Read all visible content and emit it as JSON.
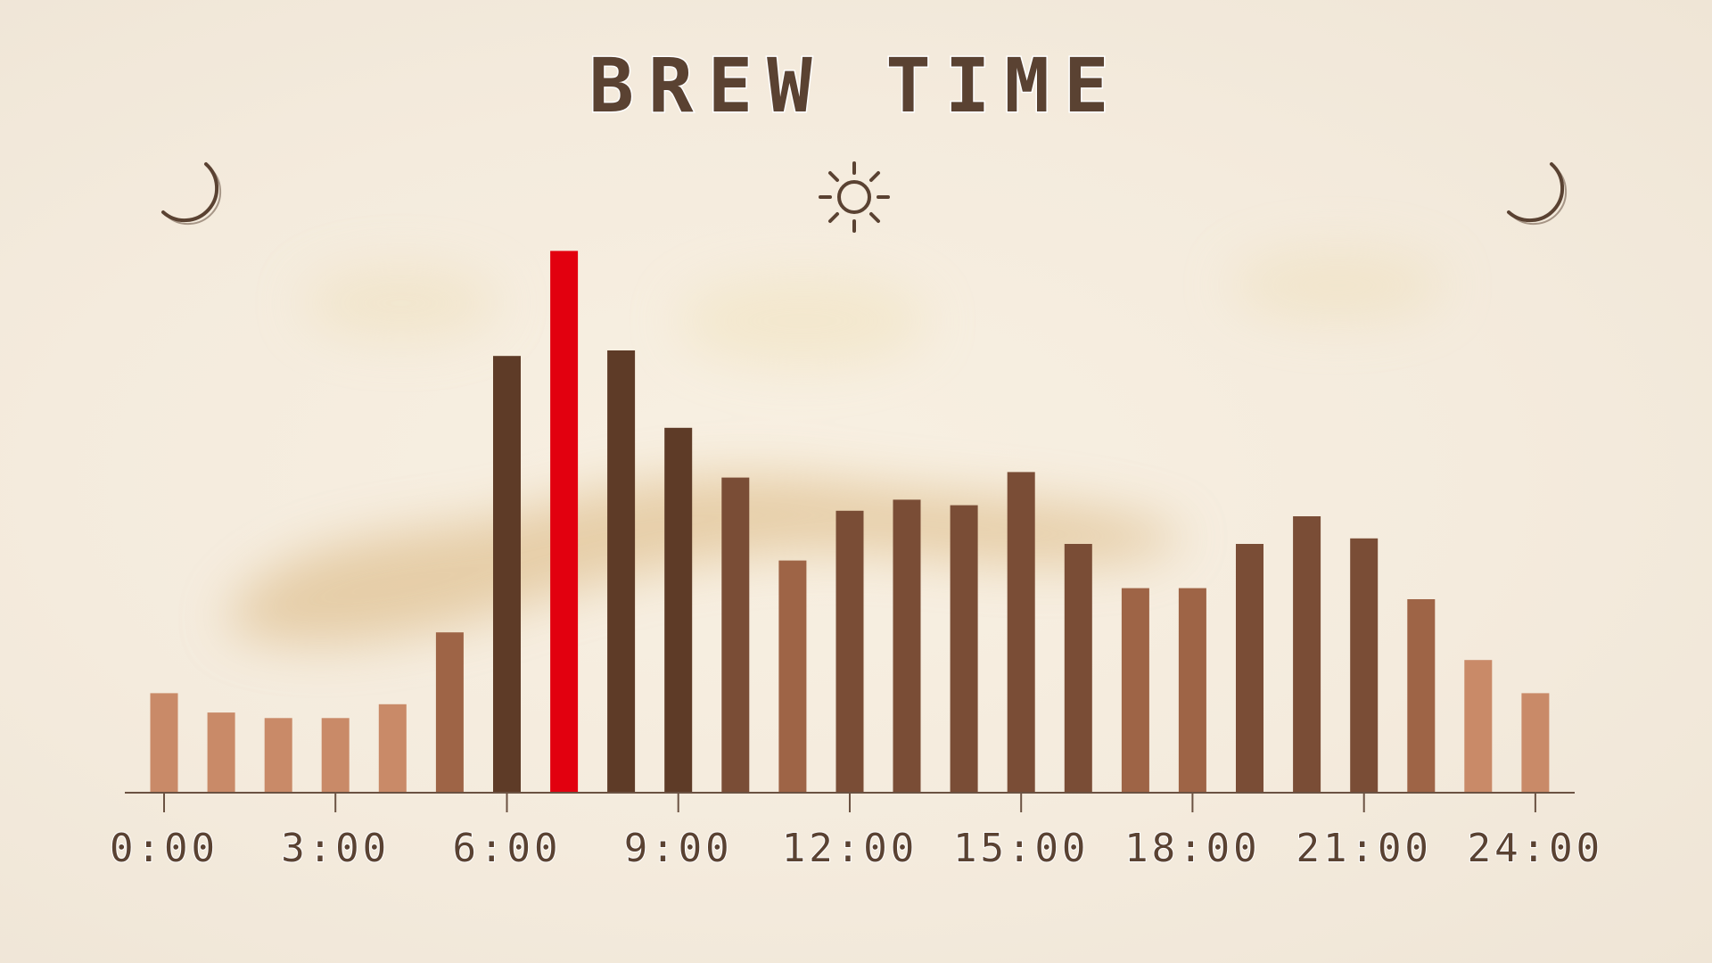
{
  "chart_data": {
    "type": "bar",
    "title": "BREW TIME",
    "xlabel": "",
    "ylabel": "",
    "categories": [
      "0:00",
      "1:00",
      "2:00",
      "3:00",
      "4:00",
      "5:00",
      "6:00",
      "7:00",
      "8:00",
      "9:00",
      "10:00",
      "11:00",
      "12:00",
      "13:00",
      "14:00",
      "15:00",
      "16:00",
      "17:00",
      "18:00",
      "19:00",
      "20:00",
      "21:00",
      "22:00",
      "23:00",
      "24:00"
    ],
    "values": [
      18,
      14.5,
      13.5,
      13.5,
      16,
      29,
      79,
      98,
      80,
      66,
      57,
      42,
      51,
      53,
      52,
      58,
      45,
      37,
      37,
      45,
      50,
      46,
      35,
      24,
      18
    ],
    "highlight_index": 7,
    "x_tick_labels": [
      "0:00",
      "3:00",
      "6:00",
      "9:00",
      "12:00",
      "15:00",
      "18:00",
      "21:00",
      "24:00"
    ],
    "x_tick_hours": [
      0,
      3,
      6,
      9,
      12,
      15,
      18,
      21,
      24
    ],
    "ylim": [
      0,
      100
    ],
    "grid": false,
    "legend": "none",
    "colors": {
      "highlight": "#e2000f",
      "darkest": "#5e3b27",
      "dark": "#7a4d36",
      "medium": "#9e6446",
      "light": "#c98a68",
      "axis": "#6b5242"
    },
    "icons": [
      "moon-icon",
      "sun-icon",
      "moon-icon"
    ]
  }
}
